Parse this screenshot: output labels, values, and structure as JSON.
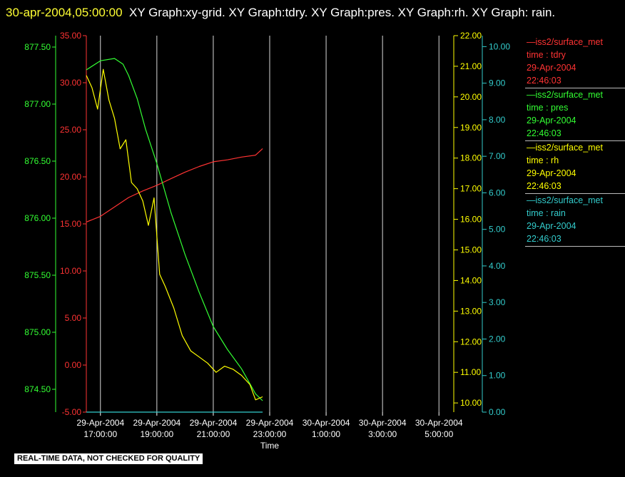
{
  "header": {
    "timestamp": "30-apr-2004,05:00:00",
    "graphs": "XY Graph:xy-grid.  XY Graph:tdry.  XY Graph:pres.  XY Graph:rh.  XY Graph: rain."
  },
  "footer": {
    "notice": "REAL-TIME DATA, NOT CHECKED FOR QUALITY"
  },
  "colors": {
    "tdry": "#ff3333",
    "pres": "#33ff33",
    "rh": "#ffff00",
    "rain": "#33cccc",
    "grid": "#ffffff"
  },
  "legend": [
    {
      "station": "iss2/surface_met",
      "var": "time : tdry",
      "date": "29-Apr-2004",
      "time": "22:46:03",
      "color": "#ff3333"
    },
    {
      "station": "iss2/surface_met",
      "var": "time : pres",
      "date": "29-Apr-2004",
      "time": "22:46:03",
      "color": "#33ff33"
    },
    {
      "station": "iss2/surface_met",
      "var": "time : rh",
      "date": "29-Apr-2004",
      "time": "22:46:03",
      "color": "#ffff00"
    },
    {
      "station": "iss2/surface_met",
      "var": "time : rain",
      "date": "29-Apr-2004",
      "time": "22:46:03",
      "color": "#33cccc"
    }
  ],
  "chart_data": {
    "type": "line",
    "xlabel": "Time",
    "xlim_hours": [
      16.5,
      29.5
    ],
    "x_ticks": [
      {
        "hour": 17,
        "date": "29-Apr-2004",
        "time": "17:00:00"
      },
      {
        "hour": 19,
        "date": "29-Apr-2004",
        "time": "19:00:00"
      },
      {
        "hour": 21,
        "date": "29-Apr-2004",
        "time": "21:00:00"
      },
      {
        "hour": 23,
        "date": "29-Apr-2004",
        "time": "23:00:00"
      },
      {
        "hour": 25,
        "date": "30-Apr-2004",
        "time": "1:00:00"
      },
      {
        "hour": 27,
        "date": "30-Apr-2004",
        "time": "3:00:00"
      },
      {
        "hour": 29,
        "date": "30-Apr-2004",
        "time": "5:00:00"
      }
    ],
    "axes": {
      "tdry": {
        "ylim": [
          -5,
          35
        ],
        "ticks": [
          "-5.00",
          "0.00",
          "5.00",
          "10.00",
          "15.00",
          "20.00",
          "25.00",
          "30.00",
          "35.00"
        ],
        "side": "left-inner"
      },
      "pres": {
        "ylim": [
          874.3,
          877.6
        ],
        "ticks": [
          "874.50",
          "875.00",
          "875.50",
          "876.00",
          "876.50",
          "877.00",
          "877.50"
        ],
        "side": "left-outer"
      },
      "rh": {
        "ylim": [
          9.7,
          22.0
        ],
        "ticks": [
          "10.00",
          "11.00",
          "12.00",
          "13.00",
          "14.00",
          "15.00",
          "16.00",
          "17.00",
          "18.00",
          "19.00",
          "20.00",
          "21.00",
          "22.00"
        ],
        "side": "right-inner"
      },
      "rain": {
        "ylim": [
          0.0,
          10.3
        ],
        "ticks": [
          "0.00",
          "1.00",
          "2.00",
          "3.00",
          "4.00",
          "5.00",
          "6.00",
          "7.00",
          "8.00",
          "9.00",
          "10.00"
        ],
        "side": "right-outer"
      }
    },
    "series": [
      {
        "key": "tdry",
        "x": [
          16.5,
          17.0,
          17.5,
          18.0,
          18.5,
          19.0,
          19.5,
          20.0,
          20.5,
          21.0,
          21.5,
          22.0,
          22.5,
          22.75
        ],
        "y": [
          15.2,
          15.8,
          16.8,
          17.8,
          18.5,
          19.1,
          19.8,
          20.5,
          21.1,
          21.6,
          21.8,
          22.1,
          22.3,
          23.0
        ]
      },
      {
        "key": "pres",
        "x": [
          16.5,
          17.0,
          17.5,
          17.8,
          18.0,
          18.3,
          18.6,
          19.0,
          19.5,
          20.0,
          20.5,
          21.0,
          21.5,
          22.0,
          22.5,
          22.75
        ],
        "y": [
          877.3,
          877.38,
          877.4,
          877.35,
          877.25,
          877.05,
          876.78,
          876.48,
          876.05,
          875.68,
          875.35,
          875.05,
          874.85,
          874.68,
          874.46,
          874.4
        ]
      },
      {
        "key": "rh",
        "x": [
          16.5,
          16.7,
          16.9,
          17.1,
          17.3,
          17.5,
          17.7,
          17.9,
          18.1,
          18.3,
          18.5,
          18.7,
          18.9,
          19.1,
          19.3,
          19.6,
          19.9,
          20.2,
          20.5,
          20.8,
          21.1,
          21.4,
          21.7,
          22.0,
          22.3,
          22.5,
          22.75
        ],
        "y": [
          20.7,
          20.3,
          19.6,
          20.9,
          19.9,
          19.3,
          18.3,
          18.6,
          17.2,
          17.0,
          16.6,
          15.8,
          16.7,
          14.2,
          13.8,
          13.1,
          12.2,
          11.7,
          11.5,
          11.3,
          11.0,
          11.2,
          11.1,
          10.9,
          10.6,
          10.1,
          10.2
        ]
      },
      {
        "key": "rain",
        "x": [
          16.5,
          22.75
        ],
        "y": [
          0.0,
          0.0
        ]
      }
    ]
  }
}
